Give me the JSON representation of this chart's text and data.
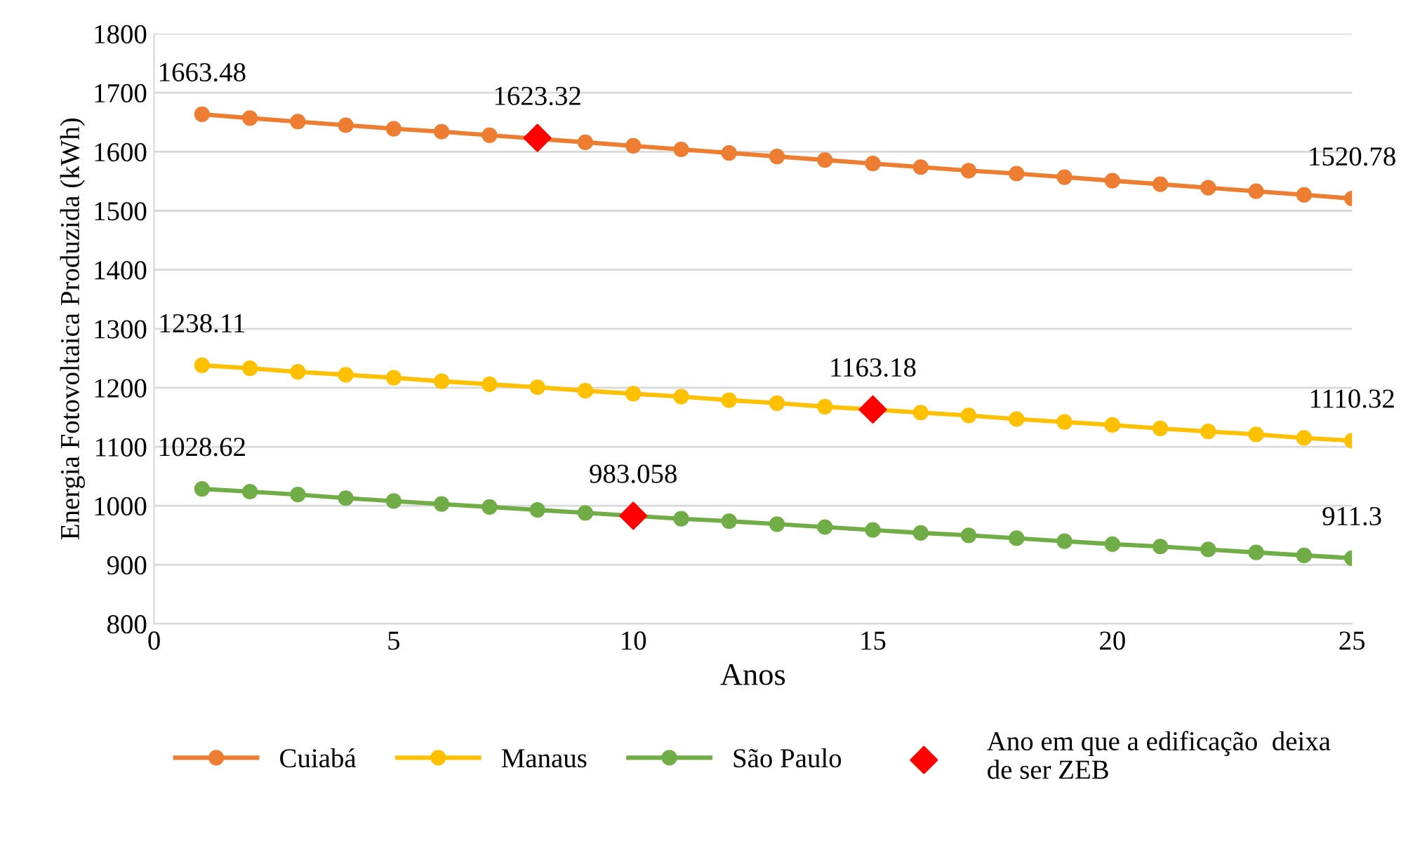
{
  "chart_data": {
    "type": "line",
    "xlabel": "Anos",
    "ylabel": "Energia Fotovoltaica Produzida (kWh)",
    "x": [
      1,
      2,
      3,
      4,
      5,
      6,
      7,
      8,
      9,
      10,
      11,
      12,
      13,
      14,
      15,
      16,
      17,
      18,
      19,
      20,
      21,
      22,
      23,
      24,
      25
    ],
    "xlim": [
      0,
      25
    ],
    "xticks": [
      0,
      5,
      10,
      15,
      20,
      25
    ],
    "ylim": [
      800,
      1800
    ],
    "yticks": [
      800,
      900,
      1000,
      1100,
      1200,
      1300,
      1400,
      1500,
      1600,
      1700,
      1800
    ],
    "grid": "y",
    "legend": "bottom",
    "marker": "circle",
    "line_style": "solid",
    "series": [
      {
        "name": "Cuiabá",
        "color": "#ed7d31",
        "values": [
          1663.48,
          1657,
          1651,
          1645,
          1639,
          1634,
          1628,
          null,
          1616,
          1610,
          1604,
          1598,
          1592,
          1586,
          1580,
          1574,
          1568,
          1563,
          1557,
          1551,
          1545,
          1539,
          1533,
          1527,
          1520.78
        ],
        "value_labels": [
          "1663.48",
          null,
          null,
          null,
          null,
          null,
          null,
          null,
          null,
          null,
          null,
          null,
          null,
          null,
          null,
          null,
          null,
          null,
          null,
          null,
          null,
          null,
          null,
          null,
          "1520.78"
        ]
      },
      {
        "name": "Manaus",
        "color": "#ffc000",
        "values": [
          1238.11,
          1233,
          1227,
          1222,
          1217,
          1211,
          1206,
          1201,
          1195,
          1190,
          1185,
          1179,
          1174,
          1168,
          null,
          1158,
          1153,
          1147,
          1142,
          1137,
          1131,
          1126,
          1121,
          1115,
          1110.32
        ],
        "value_labels": [
          "1238.11",
          null,
          null,
          null,
          null,
          null,
          null,
          null,
          null,
          null,
          null,
          null,
          null,
          null,
          null,
          null,
          null,
          null,
          null,
          null,
          null,
          null,
          null,
          null,
          "1110.32"
        ]
      },
      {
        "name": "São Paulo",
        "color": "#70ad47",
        "values": [
          1028.62,
          1024,
          1019,
          1013,
          1008,
          1003,
          998,
          993,
          988,
          null,
          978,
          974,
          969,
          964,
          959,
          954,
          950,
          945,
          940,
          935,
          931,
          926,
          921,
          916,
          911.3
        ],
        "value_labels": [
          "1028.62",
          null,
          null,
          null,
          null,
          null,
          null,
          null,
          null,
          null,
          null,
          null,
          null,
          null,
          null,
          null,
          null,
          null,
          null,
          null,
          null,
          null,
          null,
          null,
          "911.3"
        ]
      },
      {
        "name": "Ano em que a edificação  deixa\nde ser ZEB",
        "type": "scatter",
        "marker": "diamond",
        "color": "#ff0000",
        "x": [
          8,
          15,
          10
        ],
        "values": [
          1623.32,
          1163.18,
          983.058
        ],
        "value_labels": [
          "1623.32",
          "1163.18",
          "983.058"
        ]
      }
    ]
  }
}
